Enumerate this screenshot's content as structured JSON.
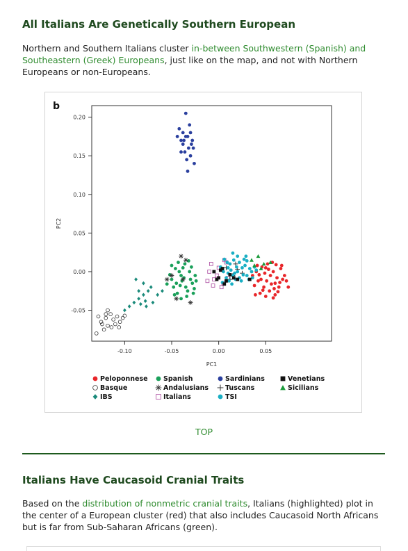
{
  "section1": {
    "title": "All Italians Are Genetically Southern European",
    "text_before": "Northern and Southern Italians cluster ",
    "link_text": "in-between Southwestern (Spanish) and Southeastern (Greek) Europeans",
    "text_after": ", just like on the map, and not with Northern Europeans or non-Europeans."
  },
  "top_link": "TOP",
  "section2": {
    "title": "Italians Have Caucasoid Cranial Traits",
    "text_before": "Based on the ",
    "link_text": "distribution of nonmetric cranial traits",
    "text_after": ", Italians (highlighted) plot in the center of a European cluster (red) that also includes Caucasoid North Africans but is far from Sub-Saharan Africans (green)."
  },
  "chart_data": {
    "type": "scatter",
    "panel_label": "b",
    "xlabel": "PC1",
    "ylabel": "PC2",
    "xlim": [
      -0.135,
      0.12
    ],
    "ylim": [
      -0.09,
      0.215
    ],
    "xticks": [
      -0.1,
      -0.05,
      0.0,
      0.05
    ],
    "xtick_labels": [
      "-0.10",
      "-0.05",
      "0.00",
      "0.05"
    ],
    "yticks": [
      -0.05,
      0.0,
      0.05,
      0.1,
      0.15,
      0.2
    ],
    "ytick_labels": [
      "-0.05",
      "0.00",
      "0.05",
      "0.10",
      "0.15",
      "0.20"
    ],
    "grid": false,
    "legend_position": "bottom",
    "series": [
      {
        "name": "Peloponnese",
        "color": "#e8262a",
        "marker": "circle-filled",
        "points": [
          [
            0.04,
            0.0
          ],
          [
            0.045,
            -0.01
          ],
          [
            0.05,
            0.005
          ],
          [
            0.055,
            -0.005
          ],
          [
            0.06,
            -0.015
          ],
          [
            0.048,
            -0.02
          ],
          [
            0.052,
            0.01
          ],
          [
            0.058,
            0.0
          ],
          [
            0.062,
            -0.008
          ],
          [
            0.042,
            -0.012
          ],
          [
            0.046,
            0.006
          ],
          [
            0.054,
            -0.025
          ],
          [
            0.064,
            -0.02
          ],
          [
            0.068,
            -0.01
          ],
          [
            0.038,
            -0.018
          ],
          [
            0.044,
            -0.028
          ],
          [
            0.05,
            -0.032
          ],
          [
            0.06,
            -0.03
          ],
          [
            0.057,
            0.012
          ],
          [
            0.066,
            0.004
          ],
          [
            0.07,
            -0.005
          ],
          [
            0.036,
            -0.005
          ],
          [
            0.049,
            -0.002
          ],
          [
            0.056,
            -0.016
          ],
          [
            0.063,
            -0.026
          ],
          [
            0.041,
            0.008
          ],
          [
            0.053,
            0.003
          ],
          [
            0.059,
            -0.022
          ],
          [
            0.065,
            -0.014
          ],
          [
            0.047,
            -0.024
          ],
          [
            0.072,
            -0.012
          ],
          [
            0.039,
            -0.03
          ],
          [
            0.067,
            0.008
          ],
          [
            0.061,
            0.009
          ],
          [
            0.051,
            -0.012
          ],
          [
            0.043,
            -0.004
          ],
          [
            0.074,
            -0.02
          ],
          [
            0.058,
            -0.034
          ]
        ]
      },
      {
        "name": "Basque",
        "color": "#333333",
        "marker": "circle-open",
        "points": [
          [
            -0.12,
            -0.06
          ],
          [
            -0.118,
            -0.07
          ],
          [
            -0.115,
            -0.055
          ],
          [
            -0.112,
            -0.062
          ],
          [
            -0.11,
            -0.068
          ],
          [
            -0.108,
            -0.058
          ],
          [
            -0.125,
            -0.065
          ],
          [
            -0.122,
            -0.075
          ],
          [
            -0.105,
            -0.065
          ],
          [
            -0.102,
            -0.06
          ],
          [
            -0.118,
            -0.05
          ],
          [
            -0.128,
            -0.058
          ],
          [
            -0.13,
            -0.08
          ],
          [
            -0.114,
            -0.072
          ],
          [
            -0.106,
            -0.072
          ],
          [
            -0.12,
            -0.055
          ],
          [
            -0.1,
            -0.057
          ],
          [
            -0.124,
            -0.068
          ]
        ]
      },
      {
        "name": "IBS",
        "color": "#1a8a7a",
        "marker": "diamond-filled",
        "points": [
          [
            -0.095,
            -0.045
          ],
          [
            -0.09,
            -0.04
          ],
          [
            -0.085,
            -0.035
          ],
          [
            -0.08,
            -0.03
          ],
          [
            -0.075,
            -0.025
          ],
          [
            -0.08,
            -0.015
          ],
          [
            -0.085,
            -0.025
          ],
          [
            -0.07,
            -0.04
          ],
          [
            -0.078,
            -0.038
          ],
          [
            -0.083,
            -0.042
          ],
          [
            -0.06,
            -0.025
          ],
          [
            -0.065,
            -0.03
          ],
          [
            -0.088,
            -0.01
          ],
          [
            -0.072,
            -0.02
          ],
          [
            -0.1,
            -0.05
          ],
          [
            -0.077,
            -0.045
          ]
        ]
      },
      {
        "name": "Spanish",
        "color": "#1aa05a",
        "marker": "circle-filled",
        "points": [
          [
            -0.05,
            -0.01
          ],
          [
            -0.045,
            -0.015
          ],
          [
            -0.04,
            -0.005
          ],
          [
            -0.035,
            -0.02
          ],
          [
            -0.03,
            -0.01
          ],
          [
            -0.042,
            0.0
          ],
          [
            -0.038,
            0.005
          ],
          [
            -0.033,
            -0.025
          ],
          [
            -0.028,
            -0.015
          ],
          [
            -0.048,
            -0.02
          ],
          [
            -0.036,
            0.01
          ],
          [
            -0.025,
            -0.005
          ],
          [
            -0.044,
            -0.028
          ],
          [
            -0.031,
            0.0
          ],
          [
            -0.039,
            -0.012
          ],
          [
            -0.046,
            0.004
          ],
          [
            -0.026,
            -0.022
          ],
          [
            -0.034,
            -0.032
          ],
          [
            -0.052,
            -0.004
          ],
          [
            -0.041,
            -0.018
          ],
          [
            -0.029,
            0.006
          ],
          [
            -0.037,
            -0.008
          ],
          [
            -0.047,
            -0.03
          ],
          [
            -0.032,
            0.014
          ],
          [
            -0.024,
            -0.012
          ],
          [
            -0.055,
            -0.016
          ],
          [
            -0.043,
            0.012
          ],
          [
            -0.027,
            -0.028
          ],
          [
            -0.04,
            -0.035
          ],
          [
            -0.05,
            0.008
          ]
        ]
      },
      {
        "name": "Andalusians",
        "color": "#333333",
        "marker": "asterisk",
        "points": [
          [
            -0.055,
            -0.01
          ],
          [
            -0.04,
            0.02
          ],
          [
            -0.035,
            0.015
          ],
          [
            -0.03,
            -0.04
          ],
          [
            -0.045,
            -0.035
          ],
          [
            -0.038,
            -0.01
          ],
          [
            -0.05,
            -0.005
          ]
        ]
      },
      {
        "name": "Italians",
        "color": "#b25aa8",
        "marker": "square-open",
        "points": [
          [
            -0.01,
            0.0
          ],
          [
            -0.005,
            -0.01
          ],
          [
            0.0,
            0.005
          ],
          [
            0.005,
            -0.015
          ],
          [
            -0.008,
            0.01
          ],
          [
            0.003,
            -0.02
          ],
          [
            0.008,
            0.012
          ],
          [
            -0.002,
            -0.005
          ],
          [
            0.01,
            -0.008
          ],
          [
            -0.012,
            -0.012
          ],
          [
            0.006,
            0.015
          ],
          [
            -0.006,
            -0.018
          ]
        ]
      },
      {
        "name": "Sardinians",
        "color": "#2a3f9e",
        "marker": "circle-filled",
        "points": [
          [
            -0.04,
            0.17
          ],
          [
            -0.035,
            0.175
          ],
          [
            -0.03,
            0.18
          ],
          [
            -0.038,
            0.165
          ],
          [
            -0.032,
            0.16
          ],
          [
            -0.042,
            0.185
          ],
          [
            -0.028,
            0.17
          ],
          [
            -0.036,
            0.155
          ],
          [
            -0.03,
            0.15
          ],
          [
            -0.034,
            0.145
          ],
          [
            -0.033,
            0.13
          ],
          [
            -0.026,
            0.14
          ],
          [
            -0.044,
            0.175
          ],
          [
            -0.038,
            0.18
          ],
          [
            -0.031,
            0.19
          ],
          [
            -0.027,
            0.16
          ],
          [
            -0.035,
            0.205
          ],
          [
            -0.04,
            0.155
          ],
          [
            -0.029,
            0.165
          ],
          [
            -0.037,
            0.17
          ],
          [
            -0.033,
            0.175
          ]
        ]
      },
      {
        "name": "Tuscans",
        "color": "#333333",
        "marker": "plus",
        "points": [
          [
            0.008,
            0.005
          ],
          [
            0.015,
            -0.005
          ],
          [
            0.02,
            0.003
          ],
          [
            0.012,
            -0.01
          ],
          [
            0.025,
            -0.002
          ],
          [
            0.018,
            0.01
          ]
        ]
      },
      {
        "name": "TSI",
        "color": "#1aafc4",
        "marker": "circle-filled",
        "points": [
          [
            0.005,
            0.0
          ],
          [
            0.01,
            0.005
          ],
          [
            0.015,
            -0.005
          ],
          [
            0.02,
            0.0
          ],
          [
            0.025,
            0.005
          ],
          [
            0.03,
            -0.005
          ],
          [
            0.012,
            0.01
          ],
          [
            0.018,
            -0.01
          ],
          [
            0.022,
            0.012
          ],
          [
            0.028,
            0.008
          ],
          [
            0.035,
            0.0
          ],
          [
            0.008,
            -0.008
          ],
          [
            0.016,
            0.015
          ],
          [
            0.024,
            -0.012
          ],
          [
            0.032,
            -0.01
          ],
          [
            0.002,
            0.006
          ],
          [
            0.014,
            -0.016
          ],
          [
            0.027,
            0.016
          ],
          [
            0.038,
            0.006
          ],
          [
            0.02,
            0.02
          ],
          [
            0.01,
            -0.002
          ],
          [
            0.03,
            0.014
          ],
          [
            0.004,
            -0.014
          ],
          [
            0.036,
            -0.008
          ],
          [
            0.019,
            0.006
          ],
          [
            0.026,
            -0.004
          ],
          [
            0.013,
            0.002
          ],
          [
            0.033,
            0.004
          ],
          [
            0.017,
            -0.002
          ],
          [
            0.009,
            0.012
          ],
          [
            0.04,
            0.002
          ],
          [
            0.022,
            -0.008
          ],
          [
            0.006,
            0.016
          ],
          [
            0.029,
            0.02
          ],
          [
            0.015,
            0.024
          ],
          [
            0.011,
            -0.012
          ]
        ]
      },
      {
        "name": "Venetians",
        "color": "#111111",
        "marker": "square-filled",
        "points": [
          [
            -0.005,
            0.0
          ],
          [
            0.0,
            -0.008
          ],
          [
            0.004,
            0.004
          ],
          [
            0.008,
            -0.012
          ],
          [
            0.012,
            -0.004
          ],
          [
            -0.002,
            -0.01
          ],
          [
            0.016,
            -0.008
          ],
          [
            0.006,
            -0.016
          ],
          [
            0.02,
            -0.01
          ],
          [
            0.002,
            0.002
          ],
          [
            0.033,
            -0.01
          ]
        ]
      },
      {
        "name": "Sicilians",
        "color": "#1a9a3a",
        "marker": "triangle-filled",
        "points": [
          [
            0.035,
            0.015
          ],
          [
            0.042,
            0.02
          ],
          [
            0.048,
            0.01
          ],
          [
            0.055,
            0.012
          ],
          [
            0.038,
            0.008
          ],
          [
            0.045,
            0.004
          ]
        ]
      }
    ],
    "legend": {
      "rows": [
        [
          "Peloponnese",
          "Spanish",
          "Sardinians",
          "Venetians"
        ],
        [
          "Basque",
          "Andalusians",
          "Tuscans",
          "Sicilians"
        ],
        [
          "IBS",
          "Italians",
          "TSI"
        ]
      ]
    }
  }
}
